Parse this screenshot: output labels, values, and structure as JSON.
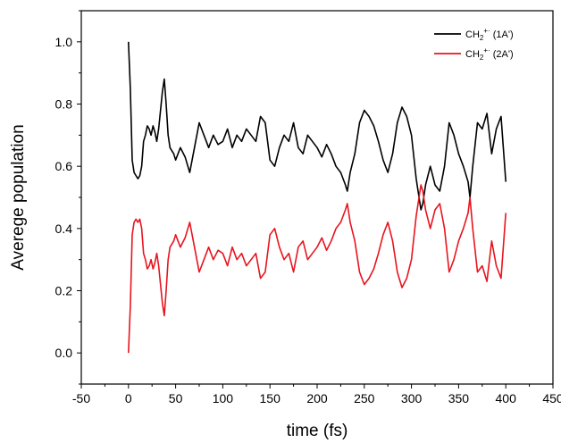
{
  "chart_data": {
    "type": "line",
    "title": "",
    "xlabel": "time (fs)",
    "ylabel": "Averege population",
    "xlim": [
      -50,
      450
    ],
    "ylim": [
      -0.1,
      1.1
    ],
    "xticks": [
      -50,
      0,
      50,
      100,
      150,
      200,
      250,
      300,
      350,
      400,
      450
    ],
    "xtick_labels": [
      "-50",
      "0",
      "50",
      "100",
      "150",
      "200",
      "250",
      "300",
      "350",
      "400",
      "450"
    ],
    "yticks": [
      0.0,
      0.2,
      0.4,
      0.6,
      0.8,
      1.0
    ],
    "ytick_labels": [
      "0.0",
      "0.2",
      "0.4",
      "0.6",
      "0.8",
      "1.0"
    ],
    "grid": false,
    "legend_position": "top-right",
    "series": [
      {
        "name_main": "CH",
        "name_sub": "2",
        "name_sup": "+·",
        "name_suffix": " (1A')",
        "color": "#000000",
        "x": [
          0,
          2,
          4,
          6,
          8,
          10,
          12,
          14,
          16,
          18,
          20,
          22,
          24,
          26,
          28,
          30,
          32,
          34,
          36,
          38,
          40,
          42,
          44,
          46,
          48,
          50,
          55,
          60,
          65,
          70,
          75,
          80,
          85,
          90,
          95,
          100,
          105,
          110,
          115,
          120,
          125,
          130,
          135,
          140,
          145,
          150,
          155,
          160,
          165,
          170,
          175,
          180,
          185,
          190,
          195,
          200,
          205,
          210,
          215,
          220,
          225,
          230,
          232,
          235,
          240,
          245,
          250,
          255,
          260,
          265,
          270,
          275,
          280,
          285,
          290,
          295,
          300,
          305,
          310,
          312,
          315,
          320,
          325,
          330,
          335,
          340,
          345,
          350,
          355,
          360,
          362,
          365,
          370,
          375,
          380,
          385,
          390,
          395,
          400
        ],
        "values": [
          1.0,
          0.85,
          0.62,
          0.58,
          0.57,
          0.56,
          0.57,
          0.6,
          0.68,
          0.7,
          0.73,
          0.72,
          0.7,
          0.73,
          0.71,
          0.68,
          0.72,
          0.78,
          0.84,
          0.88,
          0.8,
          0.7,
          0.66,
          0.65,
          0.64,
          0.62,
          0.66,
          0.63,
          0.58,
          0.66,
          0.74,
          0.7,
          0.66,
          0.7,
          0.67,
          0.68,
          0.72,
          0.66,
          0.7,
          0.68,
          0.72,
          0.7,
          0.68,
          0.76,
          0.74,
          0.62,
          0.6,
          0.66,
          0.7,
          0.68,
          0.74,
          0.66,
          0.64,
          0.7,
          0.68,
          0.66,
          0.63,
          0.67,
          0.64,
          0.6,
          0.58,
          0.54,
          0.52,
          0.58,
          0.64,
          0.74,
          0.78,
          0.76,
          0.73,
          0.68,
          0.62,
          0.58,
          0.64,
          0.74,
          0.79,
          0.76,
          0.7,
          0.56,
          0.46,
          0.48,
          0.54,
          0.6,
          0.54,
          0.52,
          0.6,
          0.74,
          0.7,
          0.64,
          0.6,
          0.55,
          0.5,
          0.6,
          0.74,
          0.72,
          0.77,
          0.64,
          0.72,
          0.76,
          0.55
        ]
      },
      {
        "name_main": "CH",
        "name_sub": "2",
        "name_sup": "+·",
        "name_suffix": " (2A')",
        "color": "#e8141e",
        "x": [
          0,
          2,
          4,
          6,
          8,
          10,
          12,
          14,
          16,
          18,
          20,
          22,
          24,
          26,
          28,
          30,
          32,
          34,
          36,
          38,
          40,
          42,
          44,
          46,
          48,
          50,
          55,
          60,
          65,
          70,
          75,
          80,
          85,
          90,
          95,
          100,
          105,
          110,
          115,
          120,
          125,
          130,
          135,
          140,
          145,
          150,
          155,
          160,
          165,
          170,
          175,
          180,
          185,
          190,
          195,
          200,
          205,
          210,
          215,
          220,
          225,
          230,
          232,
          235,
          240,
          245,
          250,
          255,
          260,
          265,
          270,
          275,
          280,
          285,
          290,
          295,
          300,
          305,
          310,
          312,
          315,
          320,
          325,
          330,
          335,
          340,
          345,
          350,
          355,
          360,
          362,
          365,
          370,
          375,
          380,
          385,
          390,
          395,
          400
        ],
        "values": [
          0.0,
          0.15,
          0.38,
          0.42,
          0.43,
          0.42,
          0.43,
          0.4,
          0.32,
          0.3,
          0.27,
          0.28,
          0.3,
          0.27,
          0.29,
          0.32,
          0.28,
          0.22,
          0.16,
          0.12,
          0.2,
          0.3,
          0.34,
          0.35,
          0.36,
          0.38,
          0.34,
          0.37,
          0.42,
          0.34,
          0.26,
          0.3,
          0.34,
          0.3,
          0.33,
          0.32,
          0.28,
          0.34,
          0.3,
          0.32,
          0.28,
          0.3,
          0.32,
          0.24,
          0.26,
          0.38,
          0.4,
          0.34,
          0.3,
          0.32,
          0.26,
          0.34,
          0.36,
          0.3,
          0.32,
          0.34,
          0.37,
          0.33,
          0.36,
          0.4,
          0.42,
          0.46,
          0.48,
          0.42,
          0.36,
          0.26,
          0.22,
          0.24,
          0.27,
          0.32,
          0.38,
          0.42,
          0.36,
          0.26,
          0.21,
          0.24,
          0.3,
          0.44,
          0.54,
          0.52,
          0.46,
          0.4,
          0.46,
          0.48,
          0.4,
          0.26,
          0.3,
          0.36,
          0.4,
          0.45,
          0.5,
          0.4,
          0.26,
          0.28,
          0.23,
          0.36,
          0.28,
          0.24,
          0.45
        ]
      }
    ]
  }
}
